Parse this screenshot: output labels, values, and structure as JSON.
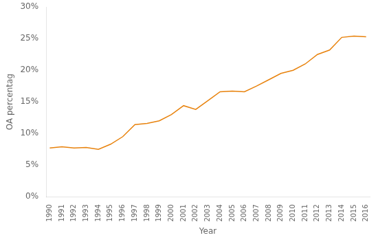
{
  "chart_data": {
    "type": "line",
    "x": [
      1990,
      1991,
      1992,
      1993,
      1994,
      1995,
      1996,
      1997,
      1998,
      1999,
      2000,
      2001,
      2002,
      2003,
      2004,
      2005,
      2006,
      2007,
      2008,
      2009,
      2010,
      2011,
      2012,
      2013,
      2014,
      2015,
      2016
    ],
    "values": [
      0.077,
      0.079,
      0.077,
      0.078,
      0.075,
      0.083,
      0.095,
      0.114,
      0.116,
      0.12,
      0.13,
      0.144,
      0.138,
      0.152,
      0.166,
      0.167,
      0.166,
      0.175,
      0.185,
      0.195,
      0.2,
      0.21,
      0.225,
      0.232,
      0.252,
      0.254,
      0.253
    ],
    "color": "#E8820C",
    "xlabel": "Year",
    "ylabel": "OA percentag",
    "xlim": [
      1989.7,
      2016.3
    ],
    "xticks": [
      1990,
      1991,
      1992,
      1993,
      1994,
      1995,
      1996,
      1997,
      1998,
      1999,
      2000,
      2001,
      2002,
      2003,
      2004,
      2005,
      2006,
      2007,
      2008,
      2009,
      2010,
      2011,
      2012,
      2013,
      2014,
      2015,
      2016
    ],
    "ylim": [
      0,
      0.3
    ],
    "yticks": [
      {
        "value": 0,
        "label": "0%"
      },
      {
        "value": 0.05,
        "label": "5%"
      },
      {
        "value": 0.1,
        "label": "10%"
      },
      {
        "value": 0.15,
        "label": "15%"
      },
      {
        "value": 0.2,
        "label": "20%"
      },
      {
        "value": 0.25,
        "label": "25%"
      },
      {
        "value": 0.3,
        "label": "30%"
      }
    ],
    "grid": false
  }
}
